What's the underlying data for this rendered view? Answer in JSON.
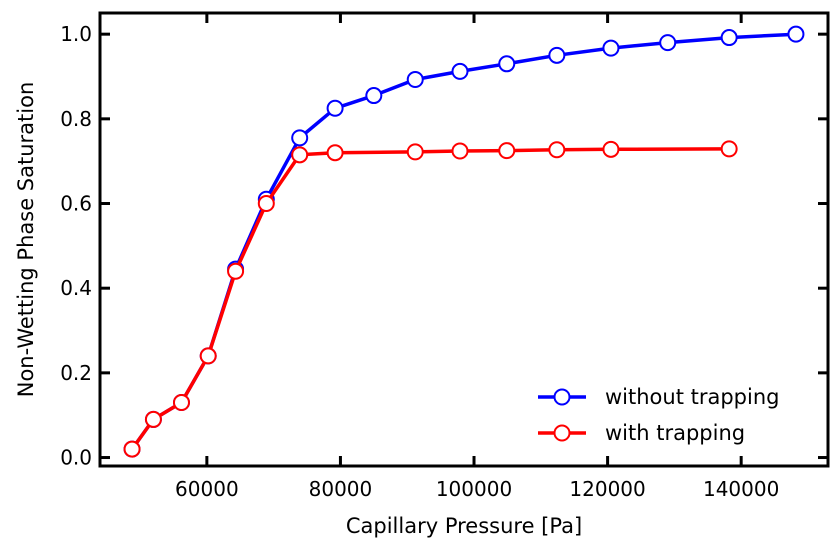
{
  "chart_data": {
    "type": "line",
    "title": "",
    "xlabel": "Capillary Pressure [Pa]",
    "ylabel": "Non-Wetting Phase Saturation",
    "xlim": [
      44000,
      153000
    ],
    "ylim": [
      -0.02,
      1.05
    ],
    "xticks": [
      60000,
      80000,
      100000,
      120000,
      140000
    ],
    "xtick_labels": [
      "60000",
      "80000",
      "100000",
      "120000",
      "140000"
    ],
    "yticks": [
      0.0,
      0.2,
      0.4,
      0.6,
      0.8,
      1.0
    ],
    "ytick_labels": [
      "0.0",
      "0.2",
      "0.4",
      "0.6",
      "0.8",
      "1.0"
    ],
    "grid": false,
    "legend_position": "bottom-right",
    "series": [
      {
        "name": "without trapping",
        "color": "#0000ff",
        "marker": "hollow-circle",
        "x": [
          48800,
          52000,
          56200,
          60200,
          64300,
          68900,
          73900,
          79200,
          85000,
          91200,
          97900,
          104900,
          112400,
          120500,
          129000,
          138200,
          148200
        ],
        "y": [
          0.02,
          0.09,
          0.13,
          0.24,
          0.445,
          0.61,
          0.755,
          0.825,
          0.855,
          0.893,
          0.912,
          0.93,
          0.95,
          0.967,
          0.98,
          0.992,
          1.0
        ]
      },
      {
        "name": "with trapping",
        "color": "#ff0000",
        "marker": "hollow-circle",
        "x": [
          48800,
          52000,
          56200,
          60200,
          64300,
          68900,
          73900,
          79200,
          91200,
          97900,
          104900,
          112400,
          120500,
          138200
        ],
        "y": [
          0.02,
          0.09,
          0.13,
          0.24,
          0.44,
          0.6,
          0.715,
          0.72,
          0.722,
          0.724,
          0.725,
          0.727,
          0.728,
          0.729
        ]
      }
    ]
  }
}
